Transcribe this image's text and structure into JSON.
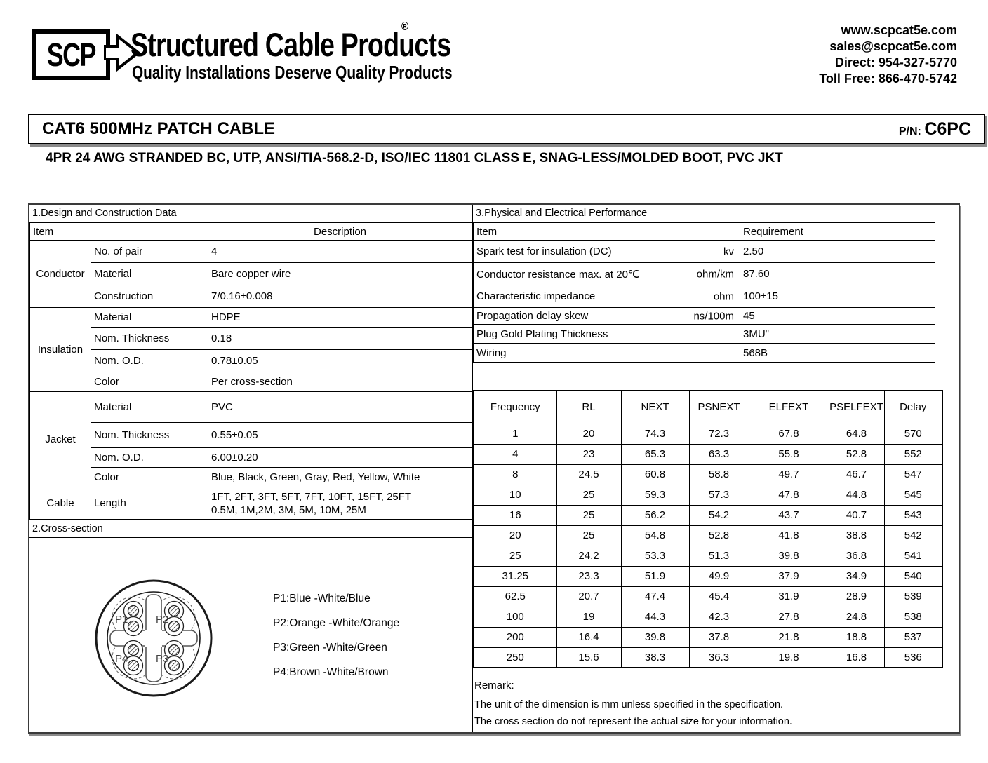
{
  "header": {
    "logo": {
      "scp": "SCP",
      "brand": "Structured Cable Products",
      "reg": "®",
      "tagline": "Quality Installations Deserve Quality Products"
    },
    "contact": {
      "website": "www.scpcat5e.com",
      "email": "sales@scpcat5e.com",
      "direct": "Direct: 954-327-5770",
      "toll_free": "Toll Free: 866-470-5742"
    }
  },
  "title_bar": {
    "title": "CAT6 500MHz PATCH CABLE",
    "pn_label": "P/N: ",
    "pn_value": "C6PC"
  },
  "subtitle": "4PR 24 AWG STRANDED BC, UTP, ANSI/TIA-568.2-D, ISO/IEC 11801 CLASS E, SNAG-LESS/MOLDED BOOT, PVC JKT",
  "design_table": {
    "section_title": "1.Design and Construction Data",
    "col_item": "Item",
    "col_description": "Description",
    "groups": [
      {
        "name": "Conductor",
        "rows": [
          [
            "No. of pair",
            "4"
          ],
          [
            "Material",
            "Bare copper wire"
          ],
          [
            "Construction",
            "7/0.16±0.008"
          ]
        ]
      },
      {
        "name": "Insulation",
        "rows": [
          [
            "Material",
            "HDPE"
          ],
          [
            "Nom. Thickness",
            "0.18"
          ],
          [
            "Nom. O.D.",
            "0.78±0.05"
          ],
          [
            "Color",
            "Per cross-section"
          ]
        ]
      },
      {
        "name": "Jacket",
        "rows": [
          [
            "Material",
            "PVC"
          ],
          [
            "Nom. Thickness",
            "0.55±0.05"
          ],
          [
            "Nom. O.D.",
            "6.00±0.20"
          ],
          [
            "Color",
            "Blue, Black, Green, Gray, Red, Yellow, White"
          ]
        ]
      },
      {
        "name": "Cable",
        "rows": [
          [
            "Length",
            "1FT, 2FT, 3FT, 5FT, 7FT, 10FT, 15FT, 25FT\n0.5M, 1M,2M, 3M, 5M, 10M, 25M"
          ]
        ]
      }
    ]
  },
  "cross_section": {
    "section_title": "2.Cross-section",
    "pair_labels": {
      "p1": "P1",
      "p2": "P2",
      "p3": "P3",
      "p4": "P4"
    },
    "legend": [
      "P1:Blue -White/Blue",
      "P2:Orange -White/Orange",
      "P3:Green -White/Green",
      "P4:Brown -White/Brown"
    ]
  },
  "performance_table": {
    "section_title": "3.Physical and Electrical Performance",
    "col_item": "Item",
    "col_requirement": "Requirement",
    "rows": [
      {
        "item": "Spark test for insulation (DC)",
        "unit": "kv",
        "requirement": "2.50"
      },
      {
        "item": "Conductor resistance max. at 20℃",
        "unit": "ohm/km",
        "requirement": "87.60"
      },
      {
        "item": "Characteristic impedance",
        "unit": "ohm",
        "requirement": "100±15"
      },
      {
        "item": "Propagation delay skew",
        "unit": "ns/100m",
        "requirement": "45"
      },
      {
        "item": "Plug Gold Plating Thickness",
        "unit": "",
        "requirement": "3MU\""
      },
      {
        "item": "Wiring",
        "unit": "",
        "requirement": "568B"
      }
    ]
  },
  "frequency_table": {
    "headers": [
      "Frequency",
      "RL",
      "NEXT",
      "PSNEXT",
      "ELFEXT",
      "PSELFEXT",
      "Delay"
    ],
    "rows": [
      [
        "1",
        "20",
        "74.3",
        "72.3",
        "67.8",
        "64.8",
        "570"
      ],
      [
        "4",
        "23",
        "65.3",
        "63.3",
        "55.8",
        "52.8",
        "552"
      ],
      [
        "8",
        "24.5",
        "60.8",
        "58.8",
        "49.7",
        "46.7",
        "547"
      ],
      [
        "10",
        "25",
        "59.3",
        "57.3",
        "47.8",
        "44.8",
        "545"
      ],
      [
        "16",
        "25",
        "56.2",
        "54.2",
        "43.7",
        "40.7",
        "543"
      ],
      [
        "20",
        "25",
        "54.8",
        "52.8",
        "41.8",
        "38.8",
        "542"
      ],
      [
        "25",
        "24.2",
        "53.3",
        "51.3",
        "39.8",
        "36.8",
        "541"
      ],
      [
        "31.25",
        "23.3",
        "51.9",
        "49.9",
        "37.9",
        "34.9",
        "540"
      ],
      [
        "62.5",
        "20.7",
        "47.4",
        "45.4",
        "31.9",
        "28.9",
        "539"
      ],
      [
        "100",
        "19",
        "44.3",
        "42.3",
        "27.8",
        "24.8",
        "538"
      ],
      [
        "200",
        "16.4",
        "39.8",
        "37.8",
        "21.8",
        "18.8",
        "537"
      ],
      [
        "250",
        "15.6",
        "38.3",
        "36.3",
        "19.8",
        "16.8",
        "536"
      ]
    ]
  },
  "remark": {
    "label": "Remark:",
    "lines": [
      "The unit of the dimension is mm unless specified in the specification.",
      "The cross section do not represent the actual size for your information."
    ]
  }
}
